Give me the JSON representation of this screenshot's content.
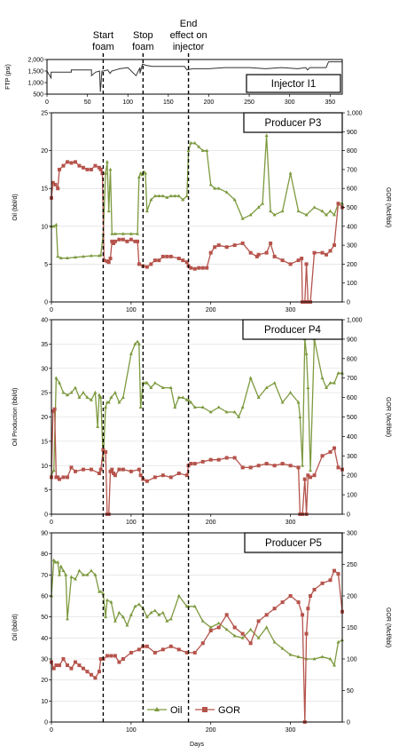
{
  "events": [
    {
      "label_lines": [
        "Start",
        "foam"
      ],
      "day": 65
    },
    {
      "label_lines": [
        "Stop",
        "foam"
      ],
      "day": 115
    },
    {
      "label_lines": [
        "End",
        "effect on",
        "injector"
      ],
      "day": 172
    }
  ],
  "xlabel": "Days",
  "legend": {
    "oil": "Oil",
    "gor": "GOR"
  },
  "colors": {
    "oil": "#7d9a3f",
    "gor": "#b5534b",
    "event_line": "#000000",
    "frame": "#000000",
    "grid": "#d9d9d9"
  },
  "chart_data": [
    {
      "type": "line",
      "title": "Injector I1",
      "ylabel": "FTP (psi)",
      "xlim": [
        0,
        365
      ],
      "xticks": [
        0,
        50,
        100,
        150,
        200,
        250,
        300,
        350
      ],
      "ylim": [
        500,
        2000
      ],
      "yticks": [
        500,
        1000,
        1500,
        2000
      ],
      "ytick_labels": [
        "500",
        "1,000",
        "1,500",
        "2,000"
      ],
      "series": [
        {
          "color": "#333333",
          "marker": "none",
          "x": [
            0,
            5,
            5,
            30,
            30,
            55,
            55,
            60,
            65,
            66,
            68,
            70,
            75,
            78,
            80,
            85,
            90,
            100,
            110,
            115,
            115,
            118,
            122,
            130,
            150,
            170,
            173,
            180,
            200,
            220,
            250,
            270,
            290,
            310,
            320,
            322,
            325,
            345,
            348,
            365
          ],
          "y": [
            1500,
            1200,
            1450,
            1450,
            1550,
            1550,
            1300,
            1450,
            1500,
            600,
            1500,
            1500,
            1550,
            1400,
            1500,
            1550,
            1600,
            1650,
            1300,
            1650,
            1400,
            1800,
            1750,
            1700,
            1700,
            1700,
            1550,
            1600,
            1600,
            1650,
            1650,
            1600,
            1650,
            1600,
            1650,
            1550,
            1650,
            1650,
            1900,
            1900
          ]
        }
      ]
    },
    {
      "type": "line",
      "title": "Producer P3",
      "ylabel": "Oil (bbl/d)",
      "y2label": "GOR (Mcf/bbl)",
      "xlim": [
        0,
        365
      ],
      "xticks": [
        0,
        100,
        200,
        300
      ],
      "ylim": [
        0,
        25
      ],
      "yticks": [
        0,
        5,
        10,
        15,
        20,
        25
      ],
      "y2lim": [
        0,
        1000
      ],
      "y2ticks": [
        0,
        100,
        200,
        300,
        400,
        500,
        600,
        700,
        800,
        900,
        1000
      ],
      "y2tick_labels": [
        "0",
        "100",
        "200",
        "300",
        "400",
        "500",
        "600",
        "700",
        "800",
        "900",
        "1,000"
      ],
      "series": [
        {
          "name": "Oil",
          "color": "#7d9a3f",
          "marker": "triangle",
          "axis": "left",
          "x": [
            0,
            3,
            6,
            8,
            12,
            20,
            30,
            40,
            50,
            60,
            62,
            65,
            68,
            70,
            72,
            74,
            76,
            80,
            90,
            100,
            108,
            110,
            112,
            114,
            116,
            118,
            120,
            125,
            130,
            135,
            140,
            145,
            150,
            155,
            160,
            165,
            170,
            172,
            175,
            180,
            185,
            190,
            195,
            200,
            205,
            210,
            220,
            230,
            240,
            250,
            260,
            265,
            270,
            275,
            280,
            290,
            300,
            310,
            320,
            330,
            340,
            345,
            350,
            355,
            360,
            365
          ],
          "y": [
            10,
            10,
            10.2,
            6,
            5.8,
            5.8,
            5.9,
            6,
            6.1,
            6.1,
            6.2,
            9,
            17,
            18.5,
            12,
            17.5,
            9,
            9,
            9,
            9,
            9,
            16.5,
            17,
            16.8,
            17.2,
            17,
            12,
            13.5,
            14,
            14,
            14,
            13.8,
            14,
            14,
            14,
            13.5,
            14,
            20,
            21,
            21,
            20.5,
            20,
            20,
            15.5,
            15,
            15,
            14.5,
            13.5,
            11,
            11.5,
            12.5,
            13,
            22,
            12,
            11.5,
            12,
            17,
            12,
            11.5,
            12.5,
            12,
            11.5,
            12,
            11.5,
            13,
            13
          ]
        },
        {
          "name": "GOR",
          "color": "#b5534b",
          "marker": "square",
          "axis": "right",
          "x": [
            0,
            2,
            5,
            8,
            10,
            15,
            20,
            25,
            30,
            35,
            40,
            45,
            50,
            55,
            60,
            62,
            64,
            66,
            70,
            72,
            74,
            76,
            78,
            80,
            85,
            90,
            95,
            100,
            105,
            108,
            110,
            115,
            120,
            125,
            130,
            135,
            140,
            145,
            150,
            160,
            165,
            170,
            172,
            175,
            180,
            185,
            190,
            195,
            200,
            205,
            210,
            220,
            230,
            240,
            250,
            258,
            260,
            270,
            275,
            280,
            290,
            300,
            310,
            314,
            315,
            318,
            320,
            322,
            325,
            330,
            340,
            345,
            350,
            355,
            360,
            365
          ],
          "y": [
            550,
            630,
            620,
            600,
            700,
            720,
            740,
            735,
            740,
            720,
            710,
            700,
            700,
            720,
            710,
            700,
            680,
            220,
            215,
            210,
            230,
            320,
            310,
            320,
            330,
            330,
            320,
            330,
            320,
            320,
            200,
            190,
            185,
            200,
            220,
            220,
            240,
            240,
            240,
            230,
            220,
            210,
            190,
            180,
            175,
            180,
            180,
            180,
            260,
            290,
            300,
            290,
            300,
            310,
            260,
            240,
            250,
            260,
            310,
            240,
            220,
            200,
            220,
            230,
            0,
            0,
            200,
            0,
            0,
            260,
            260,
            250,
            270,
            300,
            520,
            500
          ]
        }
      ]
    },
    {
      "type": "line",
      "title": "Producer P4",
      "ylabel": "Oil Production (bbl/d)",
      "y2label": "GOR (Mcf/bbl)",
      "xlim": [
        0,
        365
      ],
      "xticks": [
        0,
        100,
        200,
        300
      ],
      "ylim": [
        0,
        40
      ],
      "yticks": [
        0,
        5,
        10,
        15,
        20,
        25,
        30,
        35,
        40
      ],
      "y2lim": [
        0,
        1000
      ],
      "y2ticks": [
        0,
        100,
        200,
        300,
        400,
        500,
        600,
        700,
        800,
        900,
        1000
      ],
      "y2tick_labels": [
        "0",
        "100",
        "200",
        "300",
        "400",
        "500",
        "600",
        "700",
        "800",
        "900",
        "1,000"
      ],
      "series": [
        {
          "name": "Oil",
          "color": "#7d9a3f",
          "marker": "triangle",
          "axis": "left",
          "x": [
            0,
            3,
            6,
            10,
            15,
            20,
            25,
            30,
            35,
            40,
            45,
            50,
            55,
            58,
            60,
            62,
            65,
            68,
            70,
            72,
            75,
            80,
            85,
            90,
            100,
            105,
            108,
            110,
            112,
            115,
            118,
            120,
            125,
            130,
            140,
            150,
            155,
            160,
            165,
            170,
            172,
            175,
            180,
            190,
            200,
            210,
            220,
            230,
            235,
            240,
            250,
            260,
            270,
            280,
            290,
            300,
            310,
            312,
            315,
            318,
            320,
            322,
            325,
            330,
            340,
            345,
            350,
            355,
            360,
            365
          ],
          "y": [
            8,
            9,
            28,
            27,
            25,
            24.5,
            25,
            26,
            24,
            25,
            24,
            23.5,
            25,
            18,
            24.5,
            24,
            11,
            22,
            23,
            23,
            24,
            25,
            23,
            24,
            33,
            35,
            35.5,
            35,
            22,
            27,
            27,
            27,
            26,
            27,
            26,
            26,
            22,
            24,
            24,
            23.5,
            23.5,
            23,
            22,
            22,
            21,
            22,
            21,
            21,
            20,
            22,
            28,
            24,
            26,
            27,
            23,
            25,
            23,
            20,
            10,
            36,
            33,
            26,
            9,
            36,
            28,
            26,
            27,
            27,
            29,
            29
          ]
        },
        {
          "name": "GOR",
          "color": "#b5534b",
          "marker": "square",
          "axis": "right",
          "x": [
            0,
            2,
            4,
            6,
            8,
            10,
            15,
            20,
            25,
            30,
            40,
            50,
            60,
            62,
            65,
            68,
            70,
            72,
            74,
            76,
            78,
            80,
            85,
            90,
            100,
            110,
            112,
            115,
            120,
            130,
            140,
            150,
            160,
            170,
            172,
            175,
            180,
            190,
            200,
            210,
            220,
            230,
            240,
            250,
            260,
            270,
            280,
            290,
            300,
            310,
            312,
            315,
            318,
            320,
            322,
            325,
            330,
            340,
            350,
            355,
            360,
            365
          ],
          "y": [
            190,
            530,
            540,
            190,
            190,
            180,
            190,
            190,
            240,
            220,
            230,
            230,
            210,
            230,
            330,
            320,
            0,
            0,
            220,
            230,
            210,
            200,
            230,
            230,
            220,
            230,
            200,
            180,
            170,
            190,
            200,
            190,
            210,
            200,
            250,
            260,
            260,
            270,
            280,
            280,
            290,
            290,
            240,
            240,
            250,
            260,
            250,
            260,
            250,
            240,
            0,
            0,
            180,
            0,
            200,
            190,
            200,
            300,
            320,
            340,
            240,
            230
          ]
        }
      ]
    },
    {
      "type": "line",
      "title": "Producer P5",
      "ylabel": "Oil (bbl/d)",
      "y2label": "GOR (Mcf/bbl)",
      "xlabel": "Days",
      "xlim": [
        0,
        365
      ],
      "xticks": [
        0,
        100,
        200,
        300
      ],
      "ylim": [
        0,
        90
      ],
      "yticks": [
        0,
        10,
        20,
        30,
        40,
        50,
        60,
        70,
        80,
        90
      ],
      "y2lim": [
        0,
        300
      ],
      "y2ticks": [
        0,
        50,
        100,
        150,
        200,
        250,
        300
      ],
      "series": [
        {
          "name": "Oil",
          "color": "#7d9a3f",
          "marker": "triangle",
          "axis": "left",
          "x": [
            0,
            3,
            5,
            8,
            10,
            12,
            15,
            18,
            20,
            25,
            30,
            35,
            40,
            45,
            50,
            55,
            60,
            62,
            65,
            68,
            70,
            75,
            80,
            85,
            90,
            95,
            100,
            105,
            110,
            115,
            120,
            125,
            130,
            135,
            140,
            145,
            150,
            160,
            170,
            172,
            180,
            190,
            200,
            210,
            220,
            230,
            240,
            250,
            260,
            270,
            280,
            290,
            300,
            310,
            320,
            330,
            340,
            350,
            355,
            360,
            365
          ],
          "y": [
            60,
            77,
            76,
            76,
            70,
            74,
            72,
            70,
            49,
            69,
            68,
            72,
            70,
            70,
            72,
            70,
            62,
            62,
            61,
            50,
            58,
            57,
            48,
            52,
            50,
            46,
            51,
            55,
            56,
            54,
            50,
            52,
            53,
            51,
            52,
            48,
            49,
            60,
            55,
            55,
            55,
            48,
            45,
            47,
            44,
            41,
            40,
            44,
            40,
            45,
            38,
            35,
            32,
            31,
            30,
            30,
            31,
            30,
            27,
            38,
            39
          ]
        },
        {
          "name": "GOR",
          "color": "#b5534b",
          "marker": "square",
          "axis": "right",
          "x": [
            0,
            3,
            6,
            10,
            15,
            20,
            25,
            30,
            35,
            40,
            45,
            50,
            55,
            60,
            62,
            65,
            70,
            75,
            80,
            85,
            90,
            100,
            110,
            115,
            120,
            130,
            140,
            150,
            160,
            170,
            180,
            190,
            200,
            210,
            220,
            230,
            240,
            250,
            260,
            270,
            280,
            290,
            300,
            310,
            315,
            318,
            320,
            322,
            325,
            330,
            340,
            350,
            355,
            360,
            365
          ],
          "y": [
            95,
            85,
            90,
            90,
            100,
            90,
            85,
            95,
            90,
            85,
            80,
            75,
            70,
            80,
            100,
            100,
            105,
            105,
            105,
            95,
            100,
            110,
            115,
            120,
            120,
            110,
            115,
            120,
            115,
            110,
            110,
            125,
            145,
            150,
            170,
            150,
            140,
            125,
            160,
            170,
            180,
            190,
            200,
            190,
            170,
            0,
            140,
            180,
            200,
            210,
            220,
            225,
            240,
            235,
            175
          ]
        }
      ]
    }
  ]
}
